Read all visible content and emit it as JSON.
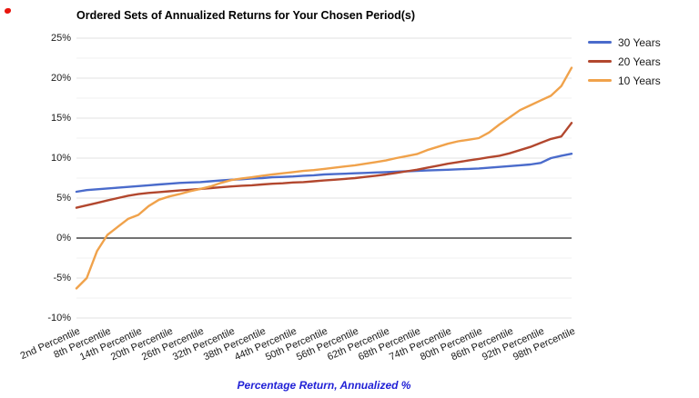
{
  "chart_data": {
    "type": "line",
    "title": "Ordered Sets of Annualized Returns for Your Chosen Period(s)",
    "xlabel": "Percentage Return, Annualized %",
    "legend_position": "right",
    "grid": true,
    "ylim": [
      -10,
      25
    ],
    "y_major_step": 5,
    "y_minor_step": 2.5,
    "y_tick_labels": [
      "25%",
      "20%",
      "15%",
      "10%",
      "5%",
      "0%",
      "-5%",
      "-10%"
    ],
    "y_tick_values": [
      25,
      20,
      15,
      10,
      5,
      0,
      -5,
      -10
    ],
    "x_tick_values": [
      2,
      8,
      14,
      20,
      26,
      32,
      38,
      44,
      50,
      56,
      62,
      68,
      74,
      80,
      86,
      92,
      98
    ],
    "x_tick_labels": [
      "2nd Percentile",
      "8th Percentile",
      "14th Percentile",
      "20th Percentile",
      "26th Percentile",
      "32th Percentile",
      "38th Percentile",
      "44th Percentile",
      "50th Percentile",
      "56th Percentile",
      "62th Percentile",
      "68th Percentile",
      "74th Percentile",
      "80th Percentile",
      "86th Percentile",
      "92th Percentile",
      "98th Percentile"
    ],
    "x": [
      2,
      4,
      6,
      8,
      10,
      12,
      14,
      16,
      18,
      20,
      22,
      24,
      26,
      28,
      30,
      32,
      34,
      36,
      38,
      40,
      42,
      44,
      46,
      48,
      50,
      52,
      54,
      56,
      58,
      60,
      62,
      64,
      66,
      68,
      70,
      72,
      74,
      76,
      78,
      80,
      82,
      84,
      86,
      88,
      90,
      92,
      94,
      96,
      98
    ],
    "series": [
      {
        "name": "30 Years",
        "color": "#4a6bcb",
        "values": [
          5.8,
          6.0,
          6.1,
          6.2,
          6.3,
          6.4,
          6.5,
          6.6,
          6.7,
          6.8,
          6.9,
          6.95,
          7.0,
          7.1,
          7.2,
          7.3,
          7.35,
          7.45,
          7.5,
          7.6,
          7.65,
          7.7,
          7.8,
          7.85,
          7.95,
          8.0,
          8.05,
          8.1,
          8.15,
          8.2,
          8.25,
          8.3,
          8.35,
          8.4,
          8.45,
          8.5,
          8.55,
          8.6,
          8.65,
          8.7,
          8.8,
          8.9,
          9.0,
          9.1,
          9.2,
          9.4,
          10.0,
          10.3,
          10.55
        ]
      },
      {
        "name": "20 Years",
        "color": "#b2472e",
        "values": [
          3.8,
          4.1,
          4.4,
          4.7,
          5.0,
          5.3,
          5.5,
          5.65,
          5.75,
          5.85,
          5.95,
          6.05,
          6.15,
          6.25,
          6.35,
          6.45,
          6.55,
          6.6,
          6.7,
          6.8,
          6.85,
          6.95,
          7.0,
          7.1,
          7.2,
          7.3,
          7.4,
          7.5,
          7.65,
          7.8,
          7.95,
          8.15,
          8.35,
          8.55,
          8.8,
          9.05,
          9.3,
          9.5,
          9.7,
          9.9,
          10.1,
          10.3,
          10.6,
          11.0,
          11.4,
          11.9,
          12.4,
          12.7,
          14.4
        ]
      },
      {
        "name": "10 Years",
        "color": "#f0a24b",
        "values": [
          -6.3,
          -5.0,
          -1.6,
          0.4,
          1.4,
          2.4,
          2.9,
          4.0,
          4.8,
          5.2,
          5.5,
          5.85,
          6.15,
          6.45,
          6.9,
          7.25,
          7.45,
          7.6,
          7.8,
          7.95,
          8.1,
          8.25,
          8.4,
          8.5,
          8.65,
          8.8,
          8.95,
          9.1,
          9.3,
          9.5,
          9.7,
          10.0,
          10.25,
          10.5,
          11.0,
          11.4,
          11.8,
          12.1,
          12.3,
          12.5,
          13.2,
          14.2,
          15.1,
          16.0,
          16.6,
          17.2,
          17.8,
          19.0,
          21.3
        ]
      }
    ],
    "colors": {
      "grid_major": "#e2e2e2",
      "grid_minor": "#f2f2f2",
      "zero_line": "#444444",
      "axis_title": "#2121d6",
      "tick_text": "#1a1a1a"
    }
  }
}
